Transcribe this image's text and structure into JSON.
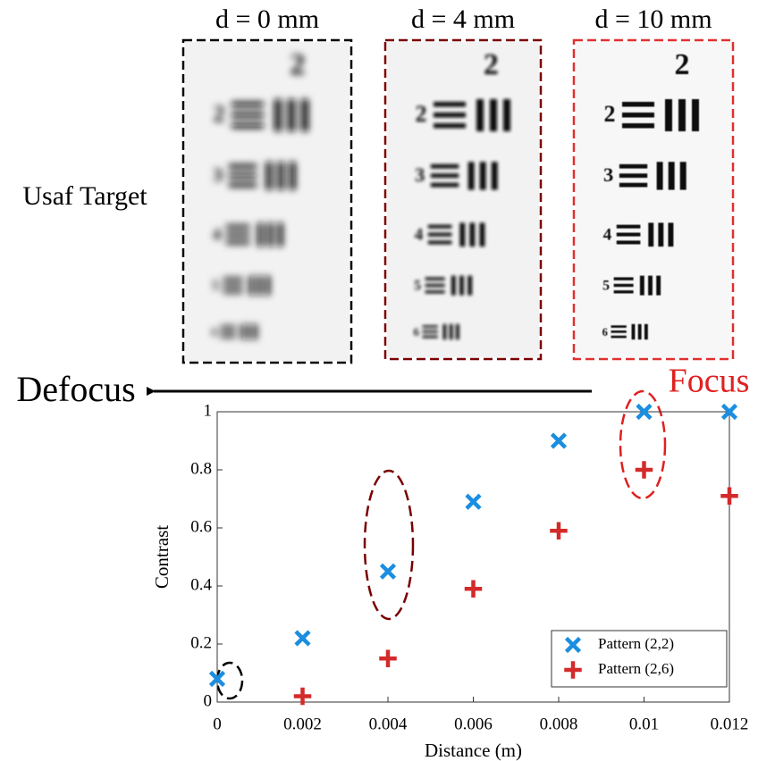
{
  "panels": [
    {
      "label": "d = 0 mm"
    },
    {
      "label": "d = 4 mm"
    },
    {
      "label": "d = 10 mm"
    }
  ],
  "target": {
    "header": "2",
    "rows": [
      "2",
      "3",
      "4",
      "5",
      "6"
    ]
  },
  "row_label": "Usaf Target",
  "defocus_label": "Defocus",
  "focus_label": "Focus",
  "chart_data": {
    "type": "scatter",
    "x": [
      0,
      0.002,
      0.004,
      0.006,
      0.008,
      0.01,
      0.012
    ],
    "series": [
      {
        "name": "Pattern (2,2)",
        "color": "#1a8ee0",
        "marker": "x",
        "values": [
          0.08,
          0.22,
          0.45,
          0.69,
          0.9,
          1.0,
          1.0
        ]
      },
      {
        "name": "Pattern (2,6)",
        "color": "#d42a2a",
        "marker": "+",
        "values": [
          null,
          0.02,
          0.15,
          0.39,
          0.59,
          0.8,
          0.71
        ]
      }
    ],
    "xlabel": "Distance (m)",
    "ylabel": "Contrast",
    "xlim": [
      0,
      0.012
    ],
    "ylim": [
      0,
      1
    ],
    "xticks": [
      0,
      0.002,
      0.004,
      0.006,
      0.008,
      0.01,
      0.012
    ],
    "yticks": [
      0,
      0.2,
      0.4,
      0.6,
      0.8,
      1
    ],
    "legend": "lower right",
    "grid": false
  }
}
